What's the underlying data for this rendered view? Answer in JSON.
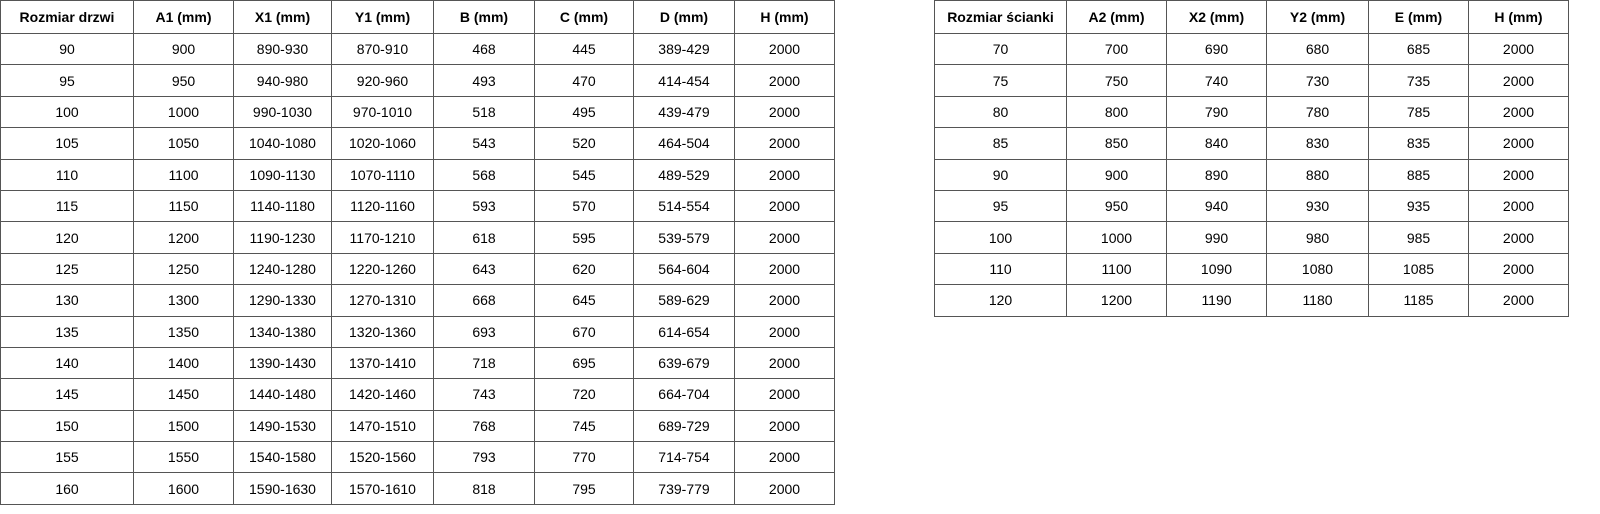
{
  "door_table": {
    "headers": [
      "Rozmiar drzwi",
      "A1 (mm)",
      "X1 (mm)",
      "Y1 (mm)",
      "B (mm)",
      "C (mm)",
      "D (mm)",
      "H (mm)"
    ],
    "rows": [
      [
        "90",
        "900",
        "890-930",
        "870-910",
        "468",
        "445",
        "389-429",
        "2000"
      ],
      [
        "95",
        "950",
        "940-980",
        "920-960",
        "493",
        "470",
        "414-454",
        "2000"
      ],
      [
        "100",
        "1000",
        "990-1030",
        "970-1010",
        "518",
        "495",
        "439-479",
        "2000"
      ],
      [
        "105",
        "1050",
        "1040-1080",
        "1020-1060",
        "543",
        "520",
        "464-504",
        "2000"
      ],
      [
        "110",
        "1100",
        "1090-1130",
        "1070-1110",
        "568",
        "545",
        "489-529",
        "2000"
      ],
      [
        "115",
        "1150",
        "1140-1180",
        "1120-1160",
        "593",
        "570",
        "514-554",
        "2000"
      ],
      [
        "120",
        "1200",
        "1190-1230",
        "1170-1210",
        "618",
        "595",
        "539-579",
        "2000"
      ],
      [
        "125",
        "1250",
        "1240-1280",
        "1220-1260",
        "643",
        "620",
        "564-604",
        "2000"
      ],
      [
        "130",
        "1300",
        "1290-1330",
        "1270-1310",
        "668",
        "645",
        "589-629",
        "2000"
      ],
      [
        "135",
        "1350",
        "1340-1380",
        "1320-1360",
        "693",
        "670",
        "614-654",
        "2000"
      ],
      [
        "140",
        "1400",
        "1390-1430",
        "1370-1410",
        "718",
        "695",
        "639-679",
        "2000"
      ],
      [
        "145",
        "1450",
        "1440-1480",
        "1420-1460",
        "743",
        "720",
        "664-704",
        "2000"
      ],
      [
        "150",
        "1500",
        "1490-1530",
        "1470-1510",
        "768",
        "745",
        "689-729",
        "2000"
      ],
      [
        "155",
        "1550",
        "1540-1580",
        "1520-1560",
        "793",
        "770",
        "714-754",
        "2000"
      ],
      [
        "160",
        "1600",
        "1590-1630",
        "1570-1610",
        "818",
        "795",
        "739-779",
        "2000"
      ]
    ]
  },
  "wall_table": {
    "headers": [
      "Rozmiar ścianki",
      "A2 (mm)",
      "X2 (mm)",
      "Y2 (mm)",
      "E (mm)",
      "H (mm)"
    ],
    "rows": [
      [
        "70",
        "700",
        "690",
        "680",
        "685",
        "2000"
      ],
      [
        "75",
        "750",
        "740",
        "730",
        "735",
        "2000"
      ],
      [
        "80",
        "800",
        "790",
        "780",
        "785",
        "2000"
      ],
      [
        "85",
        "850",
        "840",
        "830",
        "835",
        "2000"
      ],
      [
        "90",
        "900",
        "890",
        "880",
        "885",
        "2000"
      ],
      [
        "95",
        "950",
        "940",
        "930",
        "935",
        "2000"
      ],
      [
        "100",
        "1000",
        "990",
        "980",
        "985",
        "2000"
      ],
      [
        "110",
        "1100",
        "1090",
        "1080",
        "1085",
        "2000"
      ],
      [
        "120",
        "1200",
        "1190",
        "1180",
        "1185",
        "2000"
      ]
    ]
  }
}
